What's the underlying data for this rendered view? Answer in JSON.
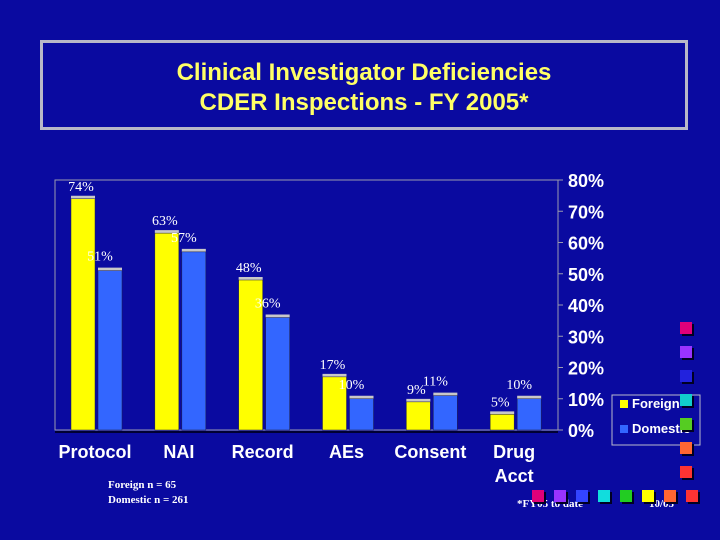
{
  "title": {
    "line1": "Clinical Investigator Deficiencies",
    "line2": "CDER Inspections - FY 2005*"
  },
  "notes": {
    "foreign_n": "Foreign n = 65",
    "domestic_n": "Domestic n  = 261"
  },
  "footer": {
    "left": "*FY05 to date",
    "right": "10/05"
  },
  "colors": {
    "background": "#0a0aa0",
    "foreign": "#ffff00",
    "domestic": "#3366ff",
    "title": "#ffff66"
  },
  "decorations": {
    "right_column": [
      "#e0007a",
      "#9933ff",
      "#2222dd",
      "#11cccc",
      "#55cc22",
      "#ff6633",
      "#ff3333"
    ],
    "bottom_row": [
      "#e0007a",
      "#9933ff",
      "#3344ff",
      "#11dddd",
      "#22cc22",
      "#ffff00",
      "#ff6633",
      "#ff3333"
    ]
  },
  "chart_data": {
    "type": "bar",
    "categories": [
      [
        "Protocol"
      ],
      [
        "NAI"
      ],
      [
        "Record"
      ],
      [
        "AEs"
      ],
      [
        "Consent"
      ],
      [
        "Drug",
        "Acct"
      ]
    ],
    "series": [
      {
        "name": "Foreign",
        "values": [
          74,
          63,
          48,
          17,
          9,
          5
        ],
        "labels": [
          "74%",
          "63%",
          "48%",
          "17%",
          "9%",
          "5%"
        ]
      },
      {
        "name": "Domestic",
        "values": [
          51,
          57,
          36,
          10,
          11,
          10
        ],
        "labels": [
          "51%",
          "57%",
          "36%",
          "10%",
          "11%",
          "10%"
        ]
      }
    ],
    "ylim": [
      0,
      80
    ],
    "yticks": [
      "0%",
      "10%",
      "20%",
      "30%",
      "40%",
      "50%",
      "60%",
      "70%",
      "80%"
    ],
    "legend_position": "bottom-right",
    "grid": false
  }
}
